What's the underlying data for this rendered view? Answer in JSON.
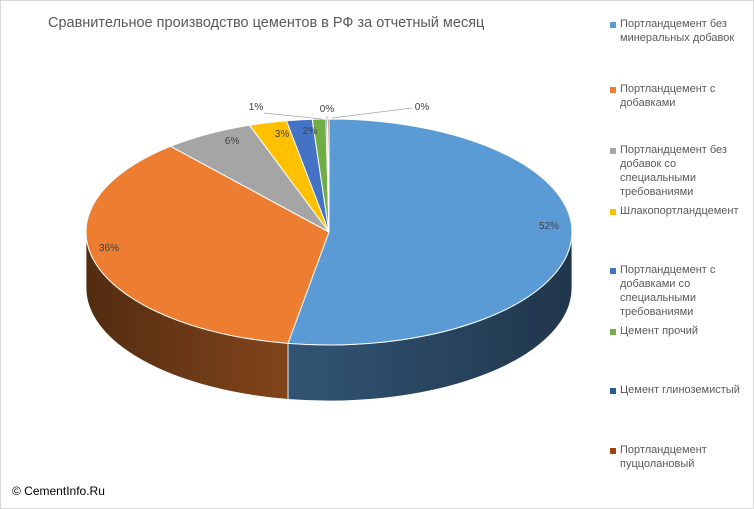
{
  "chart_data": {
    "type": "pie",
    "variant": "3d",
    "title": "Сравнительное производство цементов в РФ за отчетный месяц",
    "legend_position": "right",
    "slices": [
      {
        "label": "Портландцемент без минеральных добавок",
        "value": 52,
        "display": "52%",
        "color": "#5B9BD5"
      },
      {
        "label": "Портландцемент с добавками",
        "value": 36,
        "display": "36%",
        "color": "#ED7D31"
      },
      {
        "label": "Портландцемент без добавок со специальными требованиями",
        "value": 6,
        "display": "6%",
        "color": "#A5A5A5"
      },
      {
        "label": "Шлакопортландцемент",
        "value": 3,
        "display": "3%",
        "color": "#FFC000"
      },
      {
        "label": "Портландцемент с добавками со специальными требованиями",
        "value": 2,
        "display": "2%",
        "color": "#4472C4"
      },
      {
        "label": "Цемент прочий",
        "value": 1,
        "display": "1%",
        "color": "#70AD47"
      },
      {
        "label": "Цемент глиноземистый",
        "value": 0,
        "display": "0%",
        "color": "#255E91"
      },
      {
        "label": "Портландцемент пуццолановый",
        "value": 0,
        "display": "0%",
        "color": "#9E480E"
      }
    ],
    "legend_lines": [
      [
        "Портландцемент без",
        "минеральных добавок"
      ],
      [
        "Портландцемент с",
        "добавками"
      ],
      [
        "Портландцемент без",
        "добавок со",
        "специальными",
        "требованиями"
      ],
      [
        "Шлакопортландцемент"
      ],
      [
        "Портландцемент с",
        "добавками со",
        "специальными",
        "требованиями"
      ],
      [
        "Цемент прочий"
      ],
      [
        "Цемент глиноземистый"
      ],
      [
        "Портландцемент",
        "пуццолановый"
      ]
    ]
  },
  "copyright": "© CementInfo.Ru"
}
